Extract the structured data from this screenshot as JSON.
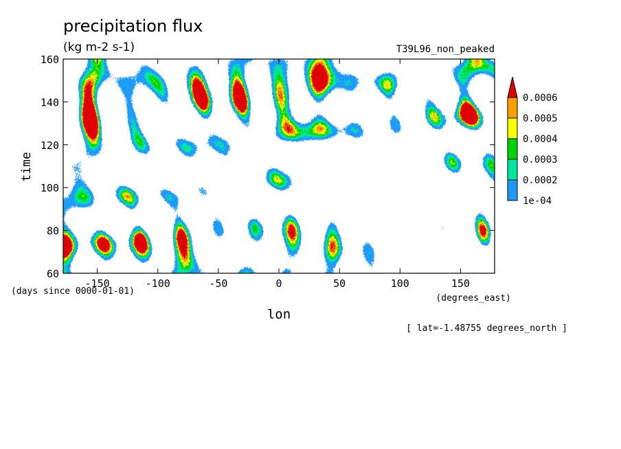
{
  "chart_data": {
    "type": "heatmap",
    "title": "precipitation flux",
    "units": "(kg m-2 s-1)",
    "dataset": "T39L96_non_peaked",
    "xlabel": "lon",
    "x_units": "(degrees_east)",
    "ylabel": "time",
    "y_units": "(days since 0000-01-01)",
    "note": "[ lat=-1.48755 degrees_north ]",
    "xlim": [
      -178.125,
      178.125
    ],
    "ylim": [
      60,
      160
    ],
    "x_ticks": [
      -150,
      -100,
      -50,
      0,
      50,
      100,
      150
    ],
    "x_tick_labels": [
      "-150",
      "-100",
      "-50",
      "0",
      "50",
      "100",
      "150"
    ],
    "y_ticks": [
      60,
      80,
      100,
      120,
      140,
      160
    ],
    "y_tick_labels": [
      "60",
      "80",
      "100",
      "120",
      "140",
      "160"
    ],
    "colorbar": {
      "levels": [
        0.0001,
        0.0002,
        0.0003,
        0.0004,
        0.0005,
        0.0006
      ],
      "level_labels": [
        "1e-04",
        "0.0002",
        "0.0003",
        "0.0004",
        "0.0005",
        "0.0006"
      ],
      "colors": [
        "#1e9bff",
        "#00e8a0",
        "#00d400",
        "#ffff00",
        "#ff9e00",
        "#e00000"
      ],
      "extend": "max"
    }
  }
}
